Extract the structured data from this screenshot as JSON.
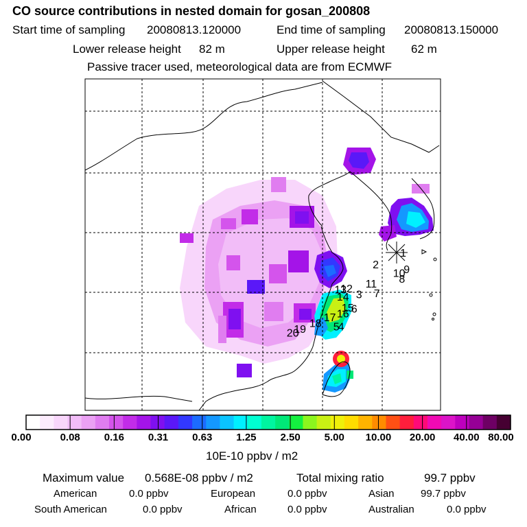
{
  "title": "CO  source contributions in nested domain for gosan_200808",
  "sampling": {
    "start_label": "Start time of sampling",
    "start_value": "20080813.120000",
    "end_label": "End time of sampling",
    "end_value": "20080813.150000"
  },
  "release": {
    "lower_label": "Lower release height",
    "lower_value": "82 m",
    "upper_label": "Upper release height",
    "upper_value": "62 m"
  },
  "tracer_note": "Passive tracer used, meteorological data are from ECMWF",
  "colors": {
    "border": "#000000",
    "scale": [
      "#ffffff",
      "#fcecfd",
      "#f8d6fb",
      "#f2bdf8",
      "#eba1f4",
      "#e07df0",
      "#d454ec",
      "#c22ce8",
      "#a414e8",
      "#7f10f0",
      "#5a18f8",
      "#3238ff",
      "#1c6cff",
      "#1498ff",
      "#0ac4ff",
      "#00f0ff",
      "#00ffd2",
      "#00f5a0",
      "#00e878",
      "#14f040",
      "#8cf51e",
      "#c8f014",
      "#f0f00a",
      "#ffdc00",
      "#ffb400",
      "#ff8c00",
      "#ff5014",
      "#ff1e3c",
      "#ff0a78",
      "#f00ab4",
      "#dc14c8",
      "#be00be",
      "#960096",
      "#6e0064",
      "#460032"
    ]
  },
  "chart_data": {
    "type": "heatmap",
    "title": "CO  source contributions in nested domain for gosan_200808",
    "colorbar": {
      "tick_labels": [
        "0.00",
        "0.08",
        "0.16",
        "0.31",
        "0.63",
        "1.25",
        "2.50",
        "5.00",
        "10.00",
        "20.00",
        "40.00",
        "80.00"
      ],
      "unit_label": "10E-10 ppbv / m2"
    },
    "site_marker": "receptor (Gosan)",
    "markers": [
      {
        "label": "1",
        "lon": 126.5,
        "lat": 33.0
      },
      {
        "label": "2",
        "lon": 124.2,
        "lat": 32.0
      },
      {
        "label": "3",
        "lon": 122.8,
        "lat": 29.5
      },
      {
        "label": "4",
        "lon": 121.3,
        "lat": 26.8
      },
      {
        "label": "5",
        "lon": 120.9,
        "lat": 26.8
      },
      {
        "label": "6",
        "lon": 122.4,
        "lat": 28.3
      },
      {
        "label": "7",
        "lon": 124.3,
        "lat": 29.6
      },
      {
        "label": "8",
        "lon": 126.4,
        "lat": 30.8
      },
      {
        "label": "9",
        "lon": 126.8,
        "lat": 31.6
      },
      {
        "label": "10",
        "lon": 125.9,
        "lat": 31.3
      },
      {
        "label": "11",
        "lon": 123.6,
        "lat": 30.4
      },
      {
        "label": "12",
        "lon": 121.5,
        "lat": 30.0
      },
      {
        "label": "13",
        "lon": 121.0,
        "lat": 29.9
      },
      {
        "label": "14",
        "lon": 121.2,
        "lat": 29.3
      },
      {
        "label": "15",
        "lon": 121.6,
        "lat": 28.4
      },
      {
        "label": "16",
        "lon": 121.2,
        "lat": 27.9
      },
      {
        "label": "17",
        "lon": 120.1,
        "lat": 27.6
      },
      {
        "label": "18",
        "lon": 118.9,
        "lat": 27.1
      },
      {
        "label": "19",
        "lon": 117.6,
        "lat": 26.6
      },
      {
        "label": "20",
        "lon": 117.0,
        "lat": 26.3
      }
    ]
  },
  "summary": {
    "max_label": "Maximum value",
    "max_value": "0.568E-08 ppbv / m2",
    "total_label": "Total mixing ratio",
    "total_value": "99.7 ppbv",
    "regions": [
      {
        "name": "American",
        "value": "0.0 ppbv"
      },
      {
        "name": "European",
        "value": "0.0 ppbv"
      },
      {
        "name": "Asian",
        "value": "99.7 ppbv"
      },
      {
        "name": "South American",
        "value": "0.0 ppbv"
      },
      {
        "name": "African",
        "value": "0.0 ppbv"
      },
      {
        "name": "Australian",
        "value": "0.0 ppbv"
      }
    ]
  }
}
